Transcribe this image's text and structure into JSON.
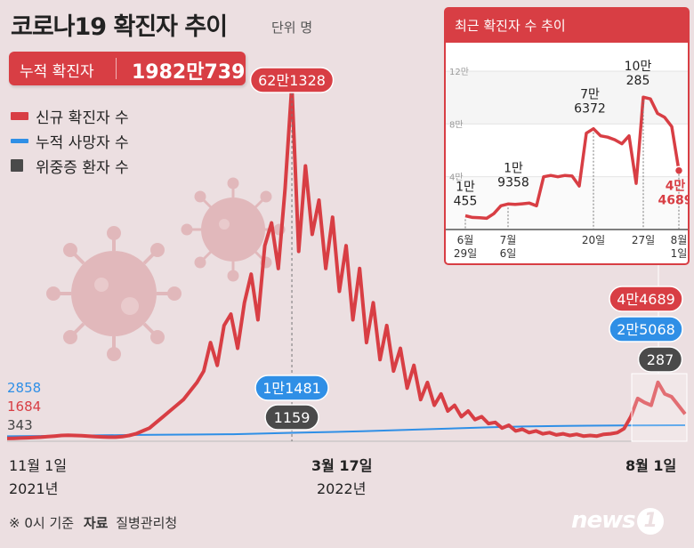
{
  "header": {
    "title": "코로나19 확진자 추이",
    "unit": "단위 명"
  },
  "total": {
    "label": "누적 확진자",
    "value": "1982만739"
  },
  "legend": [
    {
      "label": "신규 확진자 수",
      "color": "#d83e44"
    },
    {
      "label": "누적 사망자 수",
      "color": "#2f8fe6"
    },
    {
      "label": "위중증 환자 수",
      "color": "#4a4a4a"
    }
  ],
  "start_labels": {
    "deaths": "2858",
    "cases": "1684",
    "critical": "343"
  },
  "footer": {
    "note": "※ 0시 기준",
    "source_label": "자료",
    "source": "질병관리청"
  },
  "logo": {
    "text": "news",
    "mark": "1"
  },
  "chart_data": [
    {
      "type": "line",
      "x_ticks": [
        {
          "label": "11월 1일",
          "sub": "2021년"
        },
        {
          "label": "3월 17일",
          "sub": "2022년"
        },
        {
          "label": "8월 1일",
          "sub": ""
        }
      ],
      "series": [
        {
          "name": "신규 확진자 수",
          "color": "#d83e44",
          "values": [
            1684,
            2000,
            2500,
            3000,
            3500,
            4000,
            5000,
            6000,
            7000,
            7500,
            7000,
            6500,
            6000,
            5000,
            4500,
            4000,
            4000,
            5000,
            7000,
            10000,
            15000,
            20000,
            30000,
            40000,
            50000,
            60000,
            70000,
            85000,
            100000,
            120000,
            170000,
            130000,
            200000,
            220000,
            160000,
            240000,
            290000,
            210000,
            340000,
            380000,
            300000,
            440000,
            621328,
            330000,
            480000,
            360000,
            420000,
            300000,
            390000,
            260000,
            340000,
            210000,
            300000,
            170000,
            240000,
            140000,
            200000,
            120000,
            160000,
            90000,
            130000,
            70000,
            100000,
            60000,
            80000,
            50000,
            60000,
            40000,
            50000,
            35000,
            40000,
            28000,
            30000,
            20000,
            25000,
            15000,
            18000,
            12000,
            15000,
            10000,
            12000,
            8000,
            10000,
            7000,
            9000,
            6000,
            7000,
            6000,
            9000,
            10000,
            12000,
            19000,
            40000,
            72000,
            65000,
            60000,
            100285,
            80000,
            75000,
            60000,
            44689
          ],
          "labels": [
            {
              "text": "62만1328",
              "value": 621328
            },
            {
              "text": "4만4689",
              "value": 44689
            }
          ]
        },
        {
          "name": "누적 사망자 수",
          "color": "#2f8fe6",
          "values": [
            2858,
            3400,
            4000,
            4800,
            5500,
            6000,
            6500,
            7000,
            8500,
            10000,
            11481,
            13000,
            15000,
            17000,
            19000,
            21000,
            22500,
            23500,
            24200,
            24500,
            24800,
            25068
          ],
          "labels": [
            {
              "text": "1만1481",
              "value": 11481
            },
            {
              "text": "2만5068",
              "value": 25068
            }
          ]
        },
        {
          "name": "위중증 환자 수",
          "color": "#4a4a4a",
          "values": [
            343,
            500,
            800,
            1000,
            1100,
            1159,
            1000,
            700,
            400,
            200,
            100,
            60,
            80,
            150,
            287
          ],
          "labels": [
            {
              "text": "1159",
              "value": 1159
            },
            {
              "text": "287",
              "value": 287
            }
          ]
        }
      ]
    },
    {
      "type": "line",
      "title": "최근 확진자 수 추이",
      "y_ticks": [
        "4만",
        "8만",
        "12만"
      ],
      "ylim": [
        0,
        120000
      ],
      "x_ticks": [
        {
          "line1": "6월",
          "line2": "29일"
        },
        {
          "line1": "7월",
          "line2": "6일"
        },
        {
          "line1": "20일",
          "line2": ""
        },
        {
          "line1": "27일",
          "line2": ""
        },
        {
          "line1": "8월",
          "line2": "1일"
        }
      ],
      "series": [
        {
          "name": "신규 확진자 수",
          "color": "#d83e44",
          "values": [
            10455,
            9200,
            9000,
            8500,
            12000,
            18000,
            19358,
            19000,
            19500,
            20000,
            18000,
            40000,
            41000,
            40000,
            41000,
            40500,
            33000,
            73000,
            76372,
            71000,
            70000,
            68000,
            65000,
            71000,
            35000,
            100285,
            99000,
            88000,
            85000,
            78000,
            44689
          ],
          "point_labels": [
            {
              "line1": "1만",
              "line2": "455"
            },
            {
              "line1": "1만",
              "line2": "9358"
            },
            {
              "line1": "7만",
              "line2": "6372"
            },
            {
              "line1": "10만",
              "line2": "285"
            },
            {
              "line1": "4만",
              "line2": "4689"
            }
          ]
        }
      ]
    }
  ]
}
